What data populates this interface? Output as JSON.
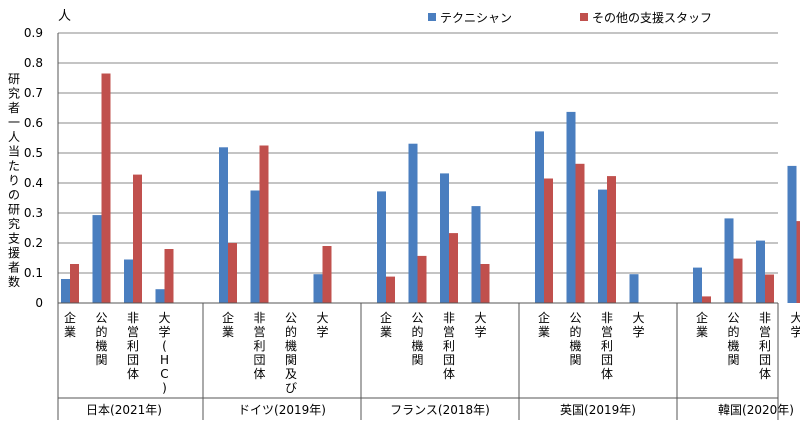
{
  "chart_data": {
    "type": "bar",
    "unit_label": "人",
    "ylabel": "研究者一人当たりの研究支援者数",
    "ylim": [
      0,
      0.9
    ],
    "yticks": [
      "0",
      "0.1",
      "0.2",
      "0.3",
      "0.4",
      "0.5",
      "0.6",
      "0.7",
      "0.8",
      "0.9"
    ],
    "grid": true,
    "legend_position": "top-right",
    "series": [
      {
        "name": "テクニシャン",
        "color": "#4a7ebf"
      },
      {
        "name": "その他の支援スタッフ",
        "color": "#c0504d"
      }
    ],
    "groups": [
      {
        "label": "日本(2021年)",
        "categories": [
          "企業",
          "公的機関",
          "非営利団体",
          "大学(HC)"
        ],
        "values": [
          [
            0.08,
            0.293,
            0.145,
            0.046
          ],
          [
            0.13,
            0.765,
            0.428,
            0.18
          ]
        ]
      },
      {
        "label": "ドイツ(2019年)",
        "categories": [
          "企業",
          "非営利団体",
          "公的機関及び",
          "大学"
        ],
        "values": [
          [
            0.519,
            0.375,
            null,
            0.096
          ],
          [
            0.2,
            0.525,
            null,
            0.19
          ]
        ]
      },
      {
        "label": "フランス(2018年)",
        "categories": [
          "企業",
          "公的機関",
          "非営利団体",
          "大学"
        ],
        "values": [
          [
            0.372,
            0.531,
            0.432,
            0.323
          ],
          [
            0.088,
            0.157,
            0.233,
            0.13
          ]
        ]
      },
      {
        "label": "英国(2019年)",
        "categories": [
          "企業",
          "公的機関",
          "非営利団体",
          "大学"
        ],
        "values": [
          [
            0.572,
            0.637,
            0.378,
            0.096
          ],
          [
            0.415,
            0.464,
            0.423,
            null
          ]
        ]
      },
      {
        "label": "韓国(2020年)",
        "categories": [
          "企業",
          "公的機関",
          "非営利団体",
          "大学"
        ],
        "values": [
          [
            0.118,
            0.282,
            0.208,
            0.457
          ],
          [
            0.022,
            0.148,
            0.095,
            0.273
          ]
        ]
      }
    ]
  }
}
